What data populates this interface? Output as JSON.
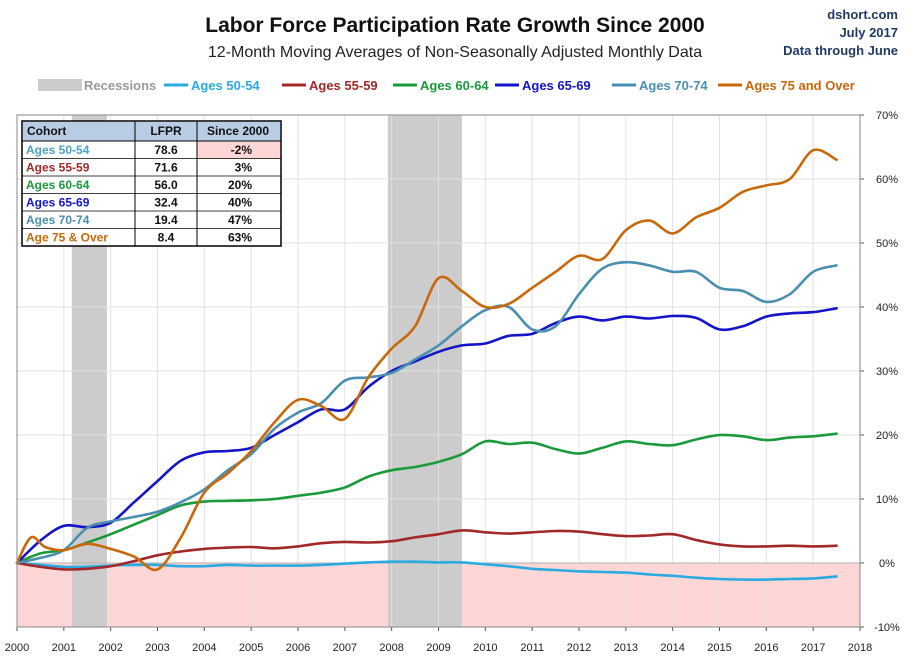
{
  "header": {
    "title": "Labor Force Participation Rate Growth Since 2000",
    "subtitle": "12-Month Moving Averages of Non-Seasonally Adjusted Monthly Data",
    "source_line1": "dshort.com",
    "source_line2": "July 2017",
    "source_line3": "Data through June"
  },
  "legend": {
    "recessions_label": "Recessions",
    "recessions_color": "#cccccc"
  },
  "table": {
    "headers": [
      "Cohort",
      "LFPR",
      "Since 2000"
    ],
    "rows": [
      {
        "cohort": "Ages 50-54",
        "lfpr": "78.6",
        "since": "-2%",
        "color": "#4aa3c7"
      },
      {
        "cohort": "Ages 55-59",
        "lfpr": "71.6",
        "since": "3%",
        "color": "#a32828"
      },
      {
        "cohort": "Ages 60-64",
        "lfpr": "56.0",
        "since": "20%",
        "color": "#1a9a3a"
      },
      {
        "cohort": "Ages 65-69",
        "lfpr": "32.4",
        "since": "40%",
        "color": "#1414c8"
      },
      {
        "cohort": "Ages 70-74",
        "lfpr": "19.4",
        "since": "47%",
        "color": "#4a8fb0"
      },
      {
        "cohort": "Age 75 & Over",
        "lfpr": "8.4",
        "since": "63%",
        "color": "#c8680a"
      }
    ]
  },
  "chart_data": {
    "type": "line",
    "title": "Labor Force Participation Rate Growth Since 2000",
    "subtitle": "12-Month Moving Averages of Non-Seasonally Adjusted Monthly Data",
    "x_ticks": [
      "2000",
      "2001",
      "2002",
      "2003",
      "2004",
      "2005",
      "2006",
      "2007",
      "2008",
      "2009",
      "2010",
      "2011",
      "2012",
      "2013",
      "2014",
      "2015",
      "2016",
      "2017",
      "2018"
    ],
    "y_ticks": [
      "70%",
      "60%",
      "50%",
      "40%",
      "30%",
      "20%",
      "10%",
      "0%",
      "-10%"
    ],
    "xlim": [
      2000,
      2018
    ],
    "ylim": [
      -10,
      70
    ],
    "y_axis_side": "right",
    "negative_region_color": "#ffd6d6",
    "recessions": [
      [
        2001.17,
        2001.92
      ],
      [
        2007.92,
        2009.5
      ]
    ],
    "series": [
      {
        "name": "Ages 50-54",
        "color": "#29abe2",
        "points": [
          [
            2000.0,
            0
          ],
          [
            2000.5,
            -0.3
          ],
          [
            2001.0,
            -0.6
          ],
          [
            2001.5,
            -0.6
          ],
          [
            2002.0,
            -0.4
          ],
          [
            2002.5,
            -0.3
          ],
          [
            2003.0,
            -0.3
          ],
          [
            2003.5,
            -0.5
          ],
          [
            2004.0,
            -0.5
          ],
          [
            2004.5,
            -0.3
          ],
          [
            2005.0,
            -0.4
          ],
          [
            2005.5,
            -0.4
          ],
          [
            2006.0,
            -0.4
          ],
          [
            2006.5,
            -0.3
          ],
          [
            2007.0,
            -0.1
          ],
          [
            2007.5,
            0.1
          ],
          [
            2008.0,
            0.2
          ],
          [
            2008.5,
            0.2
          ],
          [
            2009.0,
            0.1
          ],
          [
            2009.5,
            0.1
          ],
          [
            2010.0,
            -0.2
          ],
          [
            2010.5,
            -0.5
          ],
          [
            2011.0,
            -0.9
          ],
          [
            2011.5,
            -1.1
          ],
          [
            2012.0,
            -1.3
          ],
          [
            2012.5,
            -1.4
          ],
          [
            2013.0,
            -1.5
          ],
          [
            2013.5,
            -1.8
          ],
          [
            2014.0,
            -2.0
          ],
          [
            2014.5,
            -2.3
          ],
          [
            2015.0,
            -2.5
          ],
          [
            2015.5,
            -2.6
          ],
          [
            2016.0,
            -2.6
          ],
          [
            2016.5,
            -2.5
          ],
          [
            2017.0,
            -2.4
          ],
          [
            2017.5,
            -2.1
          ]
        ]
      },
      {
        "name": "Ages 55-59",
        "color": "#a32828",
        "points": [
          [
            2000.0,
            0
          ],
          [
            2000.5,
            -0.6
          ],
          [
            2001.0,
            -1.0
          ],
          [
            2001.5,
            -0.9
          ],
          [
            2002.0,
            -0.5
          ],
          [
            2002.5,
            0.3
          ],
          [
            2003.0,
            1.2
          ],
          [
            2003.5,
            1.8
          ],
          [
            2004.0,
            2.2
          ],
          [
            2004.5,
            2.4
          ],
          [
            2005.0,
            2.5
          ],
          [
            2005.5,
            2.3
          ],
          [
            2006.0,
            2.6
          ],
          [
            2006.5,
            3.1
          ],
          [
            2007.0,
            3.3
          ],
          [
            2007.5,
            3.2
          ],
          [
            2008.0,
            3.4
          ],
          [
            2008.5,
            4.0
          ],
          [
            2009.0,
            4.5
          ],
          [
            2009.5,
            5.1
          ],
          [
            2010.0,
            4.8
          ],
          [
            2010.5,
            4.6
          ],
          [
            2011.0,
            4.8
          ],
          [
            2011.5,
            5.0
          ],
          [
            2012.0,
            4.9
          ],
          [
            2012.5,
            4.5
          ],
          [
            2013.0,
            4.2
          ],
          [
            2013.5,
            4.3
          ],
          [
            2014.0,
            4.5
          ],
          [
            2014.5,
            3.6
          ],
          [
            2015.0,
            2.9
          ],
          [
            2015.5,
            2.6
          ],
          [
            2016.0,
            2.6
          ],
          [
            2016.5,
            2.7
          ],
          [
            2017.0,
            2.6
          ],
          [
            2017.5,
            2.7
          ]
        ]
      },
      {
        "name": "Ages 60-64",
        "color": "#1a9a3a",
        "points": [
          [
            2000.0,
            0
          ],
          [
            2000.5,
            1.5
          ],
          [
            2001.0,
            2.0
          ],
          [
            2001.5,
            3.2
          ],
          [
            2002.0,
            4.5
          ],
          [
            2002.5,
            6.0
          ],
          [
            2003.0,
            7.5
          ],
          [
            2003.5,
            9.0
          ],
          [
            2004.0,
            9.6
          ],
          [
            2004.5,
            9.7
          ],
          [
            2005.0,
            9.8
          ],
          [
            2005.5,
            10.0
          ],
          [
            2006.0,
            10.5
          ],
          [
            2006.5,
            11.0
          ],
          [
            2007.0,
            11.8
          ],
          [
            2007.5,
            13.5
          ],
          [
            2008.0,
            14.5
          ],
          [
            2008.5,
            15.0
          ],
          [
            2009.0,
            15.8
          ],
          [
            2009.5,
            17.0
          ],
          [
            2010.0,
            19.0
          ],
          [
            2010.5,
            18.6
          ],
          [
            2011.0,
            18.8
          ],
          [
            2011.5,
            17.8
          ],
          [
            2012.0,
            17.1
          ],
          [
            2012.5,
            18.0
          ],
          [
            2013.0,
            19.0
          ],
          [
            2013.5,
            18.6
          ],
          [
            2014.0,
            18.4
          ],
          [
            2014.5,
            19.3
          ],
          [
            2015.0,
            20.0
          ],
          [
            2015.5,
            19.8
          ],
          [
            2016.0,
            19.2
          ],
          [
            2016.5,
            19.6
          ],
          [
            2017.0,
            19.8
          ],
          [
            2017.5,
            20.2
          ]
        ]
      },
      {
        "name": "Ages 65-69",
        "color": "#1414c8",
        "points": [
          [
            2000.0,
            0
          ],
          [
            2000.5,
            3.5
          ],
          [
            2001.0,
            5.8
          ],
          [
            2001.5,
            5.6
          ],
          [
            2002.0,
            6.3
          ],
          [
            2002.5,
            9.5
          ],
          [
            2003.0,
            12.8
          ],
          [
            2003.5,
            16.0
          ],
          [
            2004.0,
            17.3
          ],
          [
            2004.5,
            17.5
          ],
          [
            2005.0,
            18.0
          ],
          [
            2005.5,
            20.0
          ],
          [
            2006.0,
            22.0
          ],
          [
            2006.5,
            24.0
          ],
          [
            2007.0,
            24.0
          ],
          [
            2007.5,
            27.5
          ],
          [
            2008.0,
            30.0
          ],
          [
            2008.5,
            31.5
          ],
          [
            2009.0,
            33.0
          ],
          [
            2009.5,
            34.0
          ],
          [
            2010.0,
            34.3
          ],
          [
            2010.5,
            35.5
          ],
          [
            2011.0,
            35.8
          ],
          [
            2011.5,
            37.5
          ],
          [
            2012.0,
            38.5
          ],
          [
            2012.5,
            37.9
          ],
          [
            2013.0,
            38.5
          ],
          [
            2013.5,
            38.2
          ],
          [
            2014.0,
            38.6
          ],
          [
            2014.5,
            38.3
          ],
          [
            2015.0,
            36.5
          ],
          [
            2015.5,
            37.0
          ],
          [
            2016.0,
            38.5
          ],
          [
            2016.5,
            39.0
          ],
          [
            2017.0,
            39.2
          ],
          [
            2017.5,
            39.8
          ]
        ]
      },
      {
        "name": "Ages 70-74",
        "color": "#4a8fb0",
        "points": [
          [
            2000.0,
            0
          ],
          [
            2000.5,
            0.8
          ],
          [
            2001.0,
            2.0
          ],
          [
            2001.5,
            5.5
          ],
          [
            2002.0,
            6.5
          ],
          [
            2002.5,
            7.2
          ],
          [
            2003.0,
            8.0
          ],
          [
            2003.5,
            9.5
          ],
          [
            2004.0,
            11.5
          ],
          [
            2004.5,
            14.5
          ],
          [
            2005.0,
            17.0
          ],
          [
            2005.5,
            21.0
          ],
          [
            2006.0,
            23.5
          ],
          [
            2006.5,
            25.0
          ],
          [
            2007.0,
            28.5
          ],
          [
            2007.5,
            29.0
          ],
          [
            2008.0,
            29.7
          ],
          [
            2008.5,
            31.8
          ],
          [
            2009.0,
            34.0
          ],
          [
            2009.5,
            37.0
          ],
          [
            2010.0,
            39.5
          ],
          [
            2010.5,
            40.0
          ],
          [
            2011.0,
            36.5
          ],
          [
            2011.5,
            37.0
          ],
          [
            2012.0,
            42.0
          ],
          [
            2012.5,
            46.0
          ],
          [
            2013.0,
            47.0
          ],
          [
            2013.5,
            46.5
          ],
          [
            2014.0,
            45.5
          ],
          [
            2014.5,
            45.5
          ],
          [
            2015.0,
            43.0
          ],
          [
            2015.5,
            42.5
          ],
          [
            2016.0,
            40.8
          ],
          [
            2016.5,
            42.0
          ],
          [
            2017.0,
            45.5
          ],
          [
            2017.5,
            46.5
          ]
        ]
      },
      {
        "name": "Ages 75 and Over",
        "color": "#c8680a",
        "points": [
          [
            2000.0,
            0
          ],
          [
            2000.3,
            4.0
          ],
          [
            2000.6,
            2.5
          ],
          [
            2001.0,
            2.0
          ],
          [
            2001.5,
            3.0
          ],
          [
            2002.0,
            2.2
          ],
          [
            2002.5,
            1.0
          ],
          [
            2003.0,
            -1.0
          ],
          [
            2003.5,
            4.0
          ],
          [
            2004.0,
            11.0
          ],
          [
            2004.5,
            14.0
          ],
          [
            2005.0,
            17.5
          ],
          [
            2005.5,
            22.0
          ],
          [
            2006.0,
            25.5
          ],
          [
            2006.5,
            24.5
          ],
          [
            2007.0,
            22.5
          ],
          [
            2007.5,
            29.0
          ],
          [
            2008.0,
            33.5
          ],
          [
            2008.5,
            37.0
          ],
          [
            2009.0,
            44.5
          ],
          [
            2009.5,
            42.5
          ],
          [
            2010.0,
            40.0
          ],
          [
            2010.5,
            40.5
          ],
          [
            2011.0,
            43.0
          ],
          [
            2011.5,
            45.5
          ],
          [
            2012.0,
            48.0
          ],
          [
            2012.5,
            47.5
          ],
          [
            2013.0,
            52.0
          ],
          [
            2013.5,
            53.5
          ],
          [
            2014.0,
            51.5
          ],
          [
            2014.5,
            54.0
          ],
          [
            2015.0,
            55.5
          ],
          [
            2015.5,
            58.0
          ],
          [
            2016.0,
            59.0
          ],
          [
            2016.5,
            60.0
          ],
          [
            2017.0,
            64.5
          ],
          [
            2017.5,
            63.0
          ]
        ]
      }
    ]
  }
}
